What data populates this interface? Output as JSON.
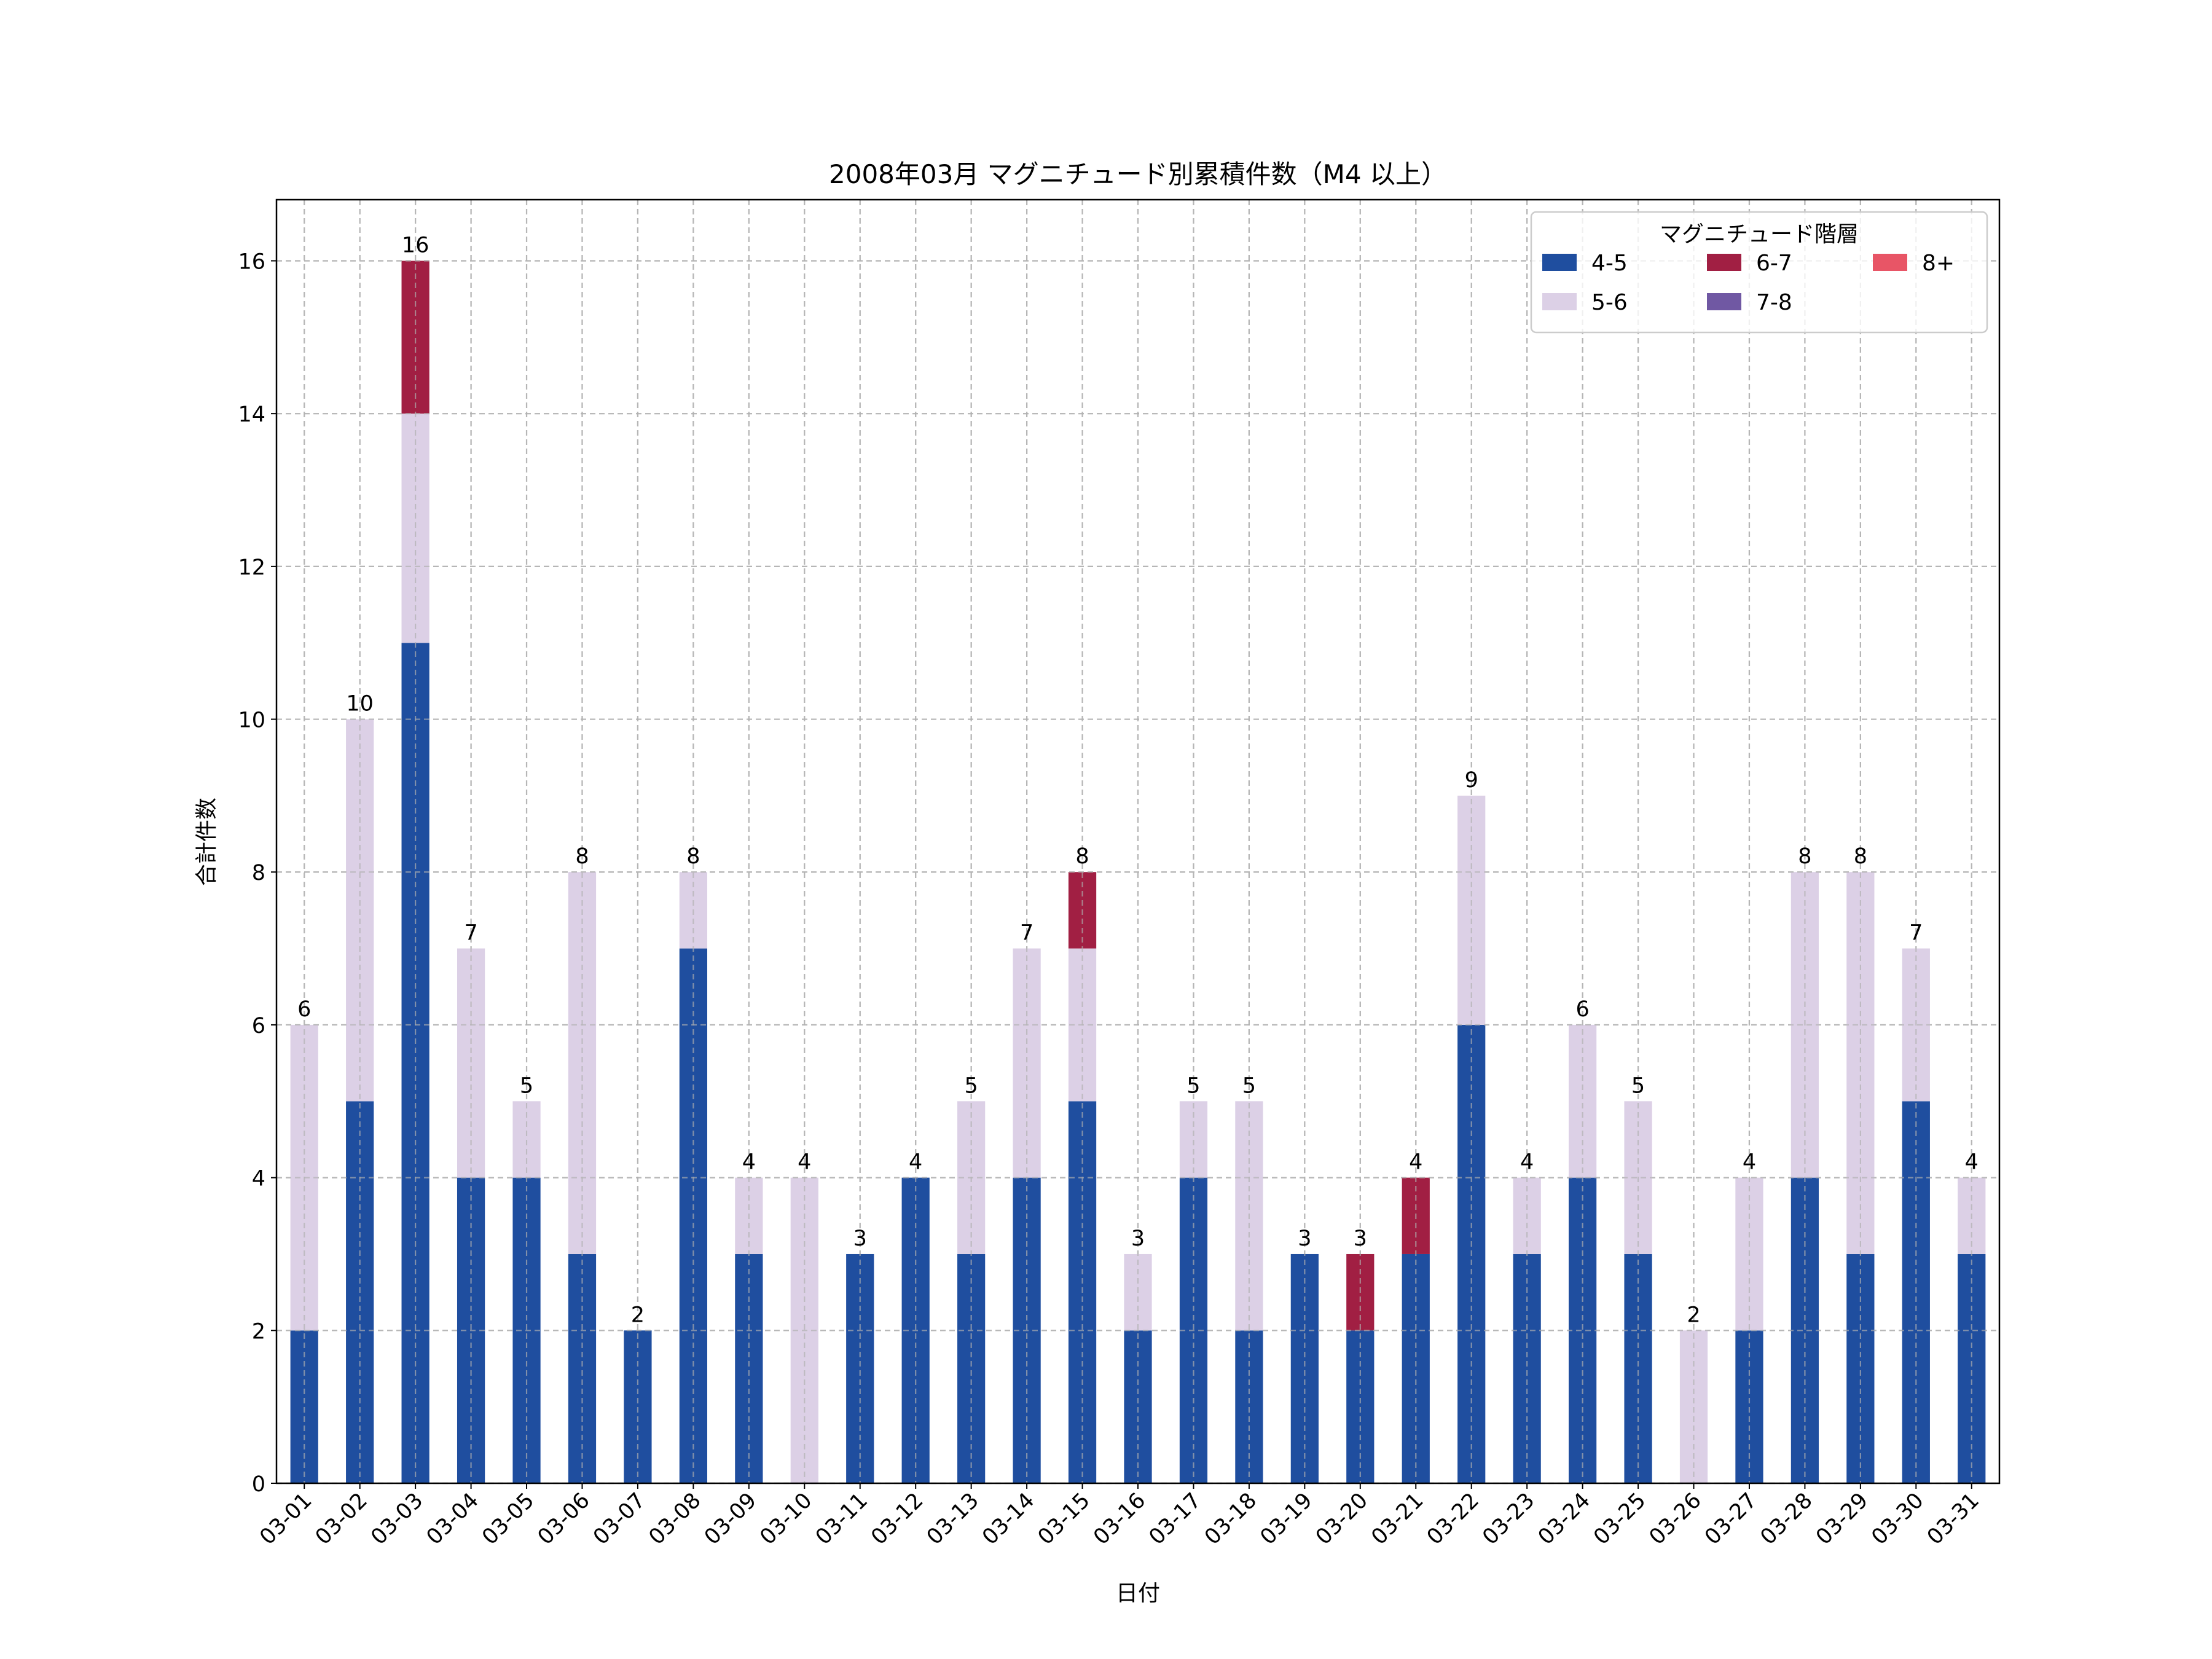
{
  "chart_data": {
    "type": "bar",
    "stacked": true,
    "title": "2008年03月 マグニチュード別累積件数（M4 以上）",
    "xlabel": "日付",
    "ylabel": "合計件数",
    "ylim": [
      0,
      16.8
    ],
    "yticks": [
      0,
      2,
      4,
      6,
      8,
      10,
      12,
      14,
      16
    ],
    "grid": true,
    "legend": {
      "title": "マグニチュード階層",
      "placement": "top-right",
      "columns": 3
    },
    "categories": [
      "03-01",
      "03-02",
      "03-03",
      "03-04",
      "03-05",
      "03-06",
      "03-07",
      "03-08",
      "03-09",
      "03-10",
      "03-11",
      "03-12",
      "03-13",
      "03-14",
      "03-15",
      "03-16",
      "03-17",
      "03-18",
      "03-19",
      "03-20",
      "03-21",
      "03-22",
      "03-23",
      "03-24",
      "03-25",
      "03-26",
      "03-27",
      "03-28",
      "03-29",
      "03-30",
      "03-31"
    ],
    "series": [
      {
        "name": "4-5",
        "color": "#1f4e9f",
        "values": [
          2,
          5,
          11,
          4,
          4,
          3,
          2,
          7,
          3,
          0,
          3,
          4,
          3,
          4,
          5,
          2,
          4,
          2,
          3,
          2,
          3,
          6,
          3,
          4,
          3,
          0,
          2,
          4,
          3,
          5,
          3
        ]
      },
      {
        "name": "5-6",
        "color": "#dcd0e6",
        "values": [
          4,
          5,
          3,
          3,
          1,
          5,
          0,
          1,
          1,
          4,
          0,
          0,
          2,
          3,
          2,
          1,
          1,
          3,
          0,
          0,
          0,
          3,
          1,
          2,
          2,
          2,
          2,
          4,
          5,
          2,
          1
        ]
      },
      {
        "name": "6-7",
        "color": "#a11f43",
        "values": [
          0,
          0,
          2,
          0,
          0,
          0,
          0,
          0,
          0,
          0,
          0,
          0,
          0,
          0,
          1,
          0,
          0,
          0,
          0,
          1,
          1,
          0,
          0,
          0,
          0,
          0,
          0,
          0,
          0,
          0,
          0
        ]
      },
      {
        "name": "7-8",
        "color": "#7058a3",
        "values": [
          0,
          0,
          0,
          0,
          0,
          0,
          0,
          0,
          0,
          0,
          0,
          0,
          0,
          0,
          0,
          0,
          0,
          0,
          0,
          0,
          0,
          0,
          0,
          0,
          0,
          0,
          0,
          0,
          0,
          0,
          0
        ]
      },
      {
        "name": "8+",
        "color": "#e85566",
        "values": [
          0,
          0,
          0,
          0,
          0,
          0,
          0,
          0,
          0,
          0,
          0,
          0,
          0,
          0,
          0,
          0,
          0,
          0,
          0,
          0,
          0,
          0,
          0,
          0,
          0,
          0,
          0,
          0,
          0,
          0,
          0
        ]
      }
    ],
    "totals": [
      6,
      10,
      16,
      7,
      5,
      8,
      2,
      8,
      4,
      4,
      3,
      4,
      5,
      7,
      8,
      3,
      5,
      5,
      3,
      3,
      4,
      9,
      4,
      6,
      5,
      2,
      4,
      8,
      8,
      7,
      4
    ]
  }
}
